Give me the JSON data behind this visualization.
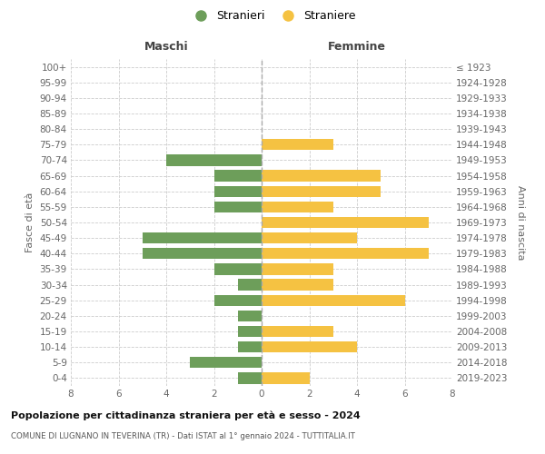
{
  "age_groups": [
    "100+",
    "95-99",
    "90-94",
    "85-89",
    "80-84",
    "75-79",
    "70-74",
    "65-69",
    "60-64",
    "55-59",
    "50-54",
    "45-49",
    "40-44",
    "35-39",
    "30-34",
    "25-29",
    "20-24",
    "15-19",
    "10-14",
    "5-9",
    "0-4"
  ],
  "birth_years": [
    "≤ 1923",
    "1924-1928",
    "1929-1933",
    "1934-1938",
    "1939-1943",
    "1944-1948",
    "1949-1953",
    "1954-1958",
    "1959-1963",
    "1964-1968",
    "1969-1973",
    "1974-1978",
    "1979-1983",
    "1984-1988",
    "1989-1993",
    "1994-1998",
    "1999-2003",
    "2004-2008",
    "2009-2013",
    "2014-2018",
    "2019-2023"
  ],
  "maschi": [
    0,
    0,
    0,
    0,
    0,
    0,
    4,
    2,
    2,
    2,
    0,
    5,
    5,
    2,
    1,
    2,
    1,
    1,
    1,
    3,
    1
  ],
  "femmine": [
    0,
    0,
    0,
    0,
    0,
    3,
    0,
    5,
    5,
    3,
    7,
    4,
    7,
    3,
    3,
    6,
    0,
    3,
    4,
    0,
    2
  ],
  "maschi_color": "#6d9e5a",
  "femmine_color": "#f5c242",
  "title_main": "Popolazione per cittadinanza straniera per età e sesso - 2024",
  "title_sub": "COMUNE DI LUGNANO IN TEVERINA (TR) - Dati ISTAT al 1° gennaio 2024 - TUTTITALIA.IT",
  "xlabel_left": "Maschi",
  "xlabel_right": "Femmine",
  "ylabel_left": "Fasce di età",
  "ylabel_right": "Anni di nascita",
  "legend_maschi": "Stranieri",
  "legend_femmine": "Straniere",
  "xlim": 8,
  "background_color": "#ffffff",
  "grid_color": "#cccccc"
}
